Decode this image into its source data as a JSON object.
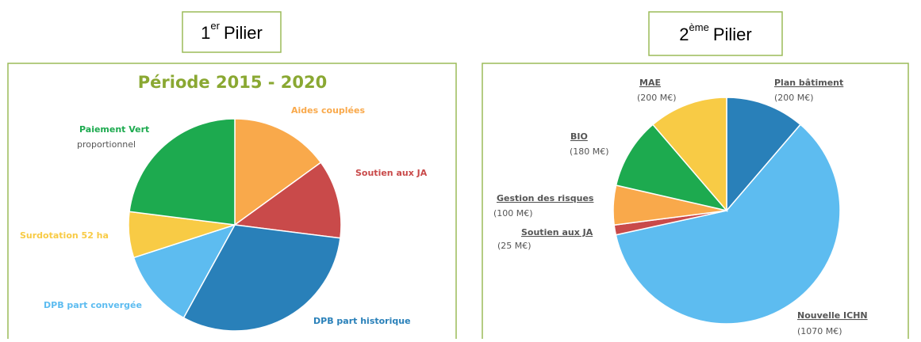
{
  "chart_data": [
    {
      "type": "pie",
      "heading": {
        "number": "1",
        "suffix": "er",
        "word": "Pilier"
      },
      "title": "Période 2015 - 2020",
      "categories": [
        "Aides couplées",
        "Soutien aux JA",
        "DPB part historique",
        "DPB part convergée",
        "Surdotation 52 ha",
        "Paiement Vert"
      ],
      "values": [
        15,
        12,
        31,
        12,
        7,
        23
      ],
      "colors": [
        "#f9a94b",
        "#c94a4a",
        "#2980b9",
        "#5dbcf0",
        "#f8cb45",
        "#1daa4f"
      ],
      "annotations": [
        {
          "text": "proportionnel"
        }
      ]
    },
    {
      "type": "pie",
      "heading": {
        "number": "2",
        "suffix": "ème",
        "word": "Pilier"
      },
      "categories": [
        "Plan bâtiment",
        "Nouvelle ICHN",
        "Soutien aux JA",
        "Gestion des risques",
        "BIO",
        "MAE"
      ],
      "values": [
        200,
        1070,
        25,
        100,
        180,
        200
      ],
      "value_labels": [
        "(200 M€)",
        "(1070 M€)",
        "(25 M€)",
        "(100 M€)",
        "(180 M€)",
        "(200 M€)"
      ],
      "colors": [
        "#2980b9",
        "#5dbcf0",
        "#c94a4a",
        "#f9a94b",
        "#1daa4f",
        "#f8cb45"
      ]
    }
  ]
}
